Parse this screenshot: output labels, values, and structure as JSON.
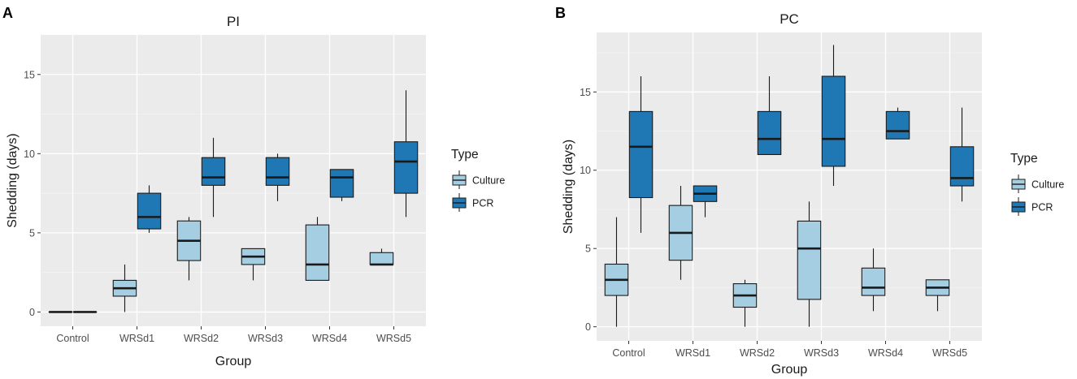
{
  "chart_data": [
    {
      "type": "boxplot",
      "panel_label": "A",
      "title": "PI",
      "xlabel": "Group",
      "ylabel": "Shedding (days)",
      "categories": [
        "Control",
        "WRSd1",
        "WRSd2",
        "WRSd3",
        "WRSd4",
        "WRSd5"
      ],
      "ylim": [
        -0.9,
        17.5
      ],
      "yticks": [
        0,
        5,
        10,
        15
      ],
      "legend": {
        "title": "Type",
        "placement": "right",
        "entries": [
          "Culture",
          "PCR"
        ]
      },
      "series": [
        {
          "name": "Culture",
          "color": "#a6cee3",
          "boxes": [
            {
              "min": 0,
              "q1": 0,
              "median": 0,
              "q3": 0,
              "max": 0
            },
            {
              "min": 0,
              "q1": 1,
              "median": 1.5,
              "q3": 2,
              "max": 3
            },
            {
              "min": 2,
              "q1": 3.25,
              "median": 4.5,
              "q3": 5.75,
              "max": 6
            },
            {
              "min": 2,
              "q1": 3,
              "median": 3.5,
              "q3": 4,
              "max": 4
            },
            {
              "min": 2,
              "q1": 2,
              "median": 3,
              "q3": 5.5,
              "max": 6
            },
            {
              "min": 3,
              "q1": 3,
              "median": 3,
              "q3": 3.75,
              "max": 4
            }
          ]
        },
        {
          "name": "PCR",
          "color": "#1f78b4",
          "boxes": [
            {
              "min": 0,
              "q1": 0,
              "median": 0,
              "q3": 0,
              "max": 0
            },
            {
              "min": 5,
              "q1": 5.25,
              "median": 6,
              "q3": 7.5,
              "max": 8
            },
            {
              "min": 6,
              "q1": 8,
              "median": 8.5,
              "q3": 9.75,
              "max": 11
            },
            {
              "min": 7,
              "q1": 8,
              "median": 8.5,
              "q3": 9.75,
              "max": 10
            },
            {
              "min": 7,
              "q1": 7.25,
              "median": 8.5,
              "q3": 9,
              "max": 9
            },
            {
              "min": 6,
              "q1": 7.5,
              "median": 9.5,
              "q3": 10.75,
              "max": 14
            }
          ]
        }
      ]
    },
    {
      "type": "boxplot",
      "panel_label": "B",
      "title": "PC",
      "xlabel": "Group",
      "ylabel": "Shedding (days)",
      "categories": [
        "Control",
        "WRSd1",
        "WRSd2",
        "WRSd3",
        "WRSd4",
        "WRSd5"
      ],
      "ylim": [
        -0.9,
        18.8
      ],
      "yticks": [
        0,
        5,
        10,
        15
      ],
      "legend": {
        "title": "Type",
        "placement": "right",
        "entries": [
          "Culture",
          "PCR"
        ]
      },
      "series": [
        {
          "name": "Culture",
          "color": "#a6cee3",
          "boxes": [
            {
              "min": 0,
              "q1": 2,
              "median": 3,
              "q3": 4,
              "max": 7
            },
            {
              "min": 3,
              "q1": 4.25,
              "median": 6,
              "q3": 7.75,
              "max": 9
            },
            {
              "min": 0,
              "q1": 1.25,
              "median": 2,
              "q3": 2.75,
              "max": 3
            },
            {
              "min": 0,
              "q1": 1.75,
              "median": 5,
              "q3": 6.75,
              "max": 8
            },
            {
              "min": 1,
              "q1": 2,
              "median": 2.5,
              "q3": 3.75,
              "max": 5
            },
            {
              "min": 1,
              "q1": 2,
              "median": 2.5,
              "q3": 3,
              "max": 3
            }
          ]
        },
        {
          "name": "PCR",
          "color": "#1f78b4",
          "boxes": [
            {
              "min": 6,
              "q1": 8.25,
              "median": 11.5,
              "q3": 13.75,
              "max": 16
            },
            {
              "min": 7,
              "q1": 8,
              "median": 8.5,
              "q3": 9,
              "max": 9
            },
            {
              "min": 11,
              "q1": 11,
              "median": 12,
              "q3": 13.75,
              "max": 16
            },
            {
              "min": 9,
              "q1": 10.25,
              "median": 12,
              "q3": 16,
              "max": 18
            },
            {
              "min": 12,
              "q1": 12,
              "median": 12.5,
              "q3": 13.75,
              "max": 14
            },
            {
              "min": 8,
              "q1": 9,
              "median": 9.5,
              "q3": 11.5,
              "max": 14
            }
          ]
        }
      ]
    }
  ]
}
